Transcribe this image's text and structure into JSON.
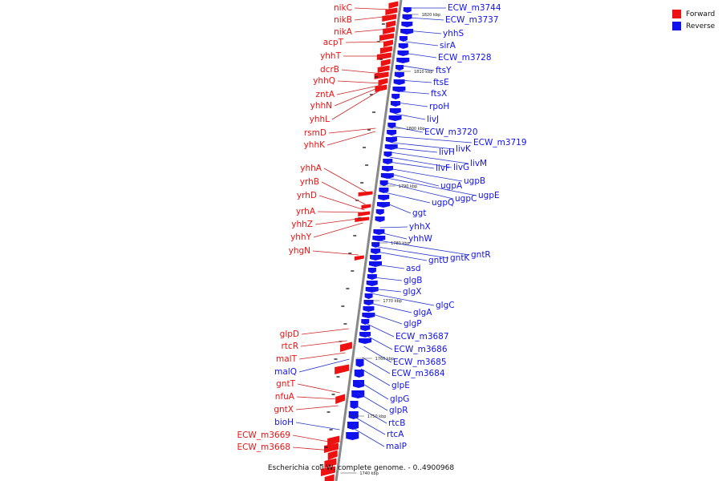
{
  "title": "Escherichia coli W, complete genome. - 0..4900968",
  "legend": [
    {
      "label": "Forward",
      "color": "#ee1111",
      "icon": "red-square"
    },
    {
      "label": "Reverse",
      "color": "#1111ee",
      "icon": "blue-square"
    }
  ],
  "colors": {
    "forward": "#ee1111",
    "reverse": "#1111ee",
    "backbone": "#888888",
    "leader_fwd": "#cc2222",
    "leader_rev": "#2233cc"
  },
  "ticks": [
    "1820 kbp",
    "1810 kbp",
    "1800 kbp",
    "1790 kbp",
    "1780 kbp",
    "1770 kbp",
    "1760 kbp",
    "1750 kbp",
    "1740 kbp"
  ],
  "forward_genes": [
    "nikC",
    "nikB",
    "nikA",
    "acpT",
    "yhhT",
    "dcrB",
    "yhhQ",
    "zntA",
    "yhhN",
    "yhhL",
    "rsmD",
    "yhhK",
    "yhhA",
    "yrhB",
    "yrhD",
    "yrhA",
    "yhhZ",
    "yhhY",
    "yhgN",
    "glpD",
    "rtcR",
    "malT",
    "gntT",
    "nfuA",
    "gntX",
    "ECW_m3669",
    "ECW_m3668"
  ],
  "left_reverse_genes": [
    "malQ",
    "bioH"
  ],
  "reverse_genes": [
    "ECW_m3744",
    "ECW_m3737",
    "yhhS",
    "sirA",
    "ECW_m3728",
    "ftsY",
    "ftsE",
    "ftsX",
    "rpoH",
    "livJ",
    "ECW_m3720",
    "ECW_m3719",
    "livK",
    "livH",
    "livM",
    "livG",
    "livF",
    "ugpB",
    "ugpA",
    "ugpE",
    "ugpC",
    "ugpQ",
    "ggt",
    "yhhX",
    "yhhW",
    "gntR",
    "gntK",
    "gntU",
    "asd",
    "glgB",
    "glgX",
    "glgC",
    "glgA",
    "glgP",
    "ECW_m3687",
    "ECW_m3686",
    "ECW_m3685",
    "ECW_m3684",
    "glpE",
    "glpG",
    "glpR",
    "rtcB",
    "rtcA",
    "malP"
  ]
}
